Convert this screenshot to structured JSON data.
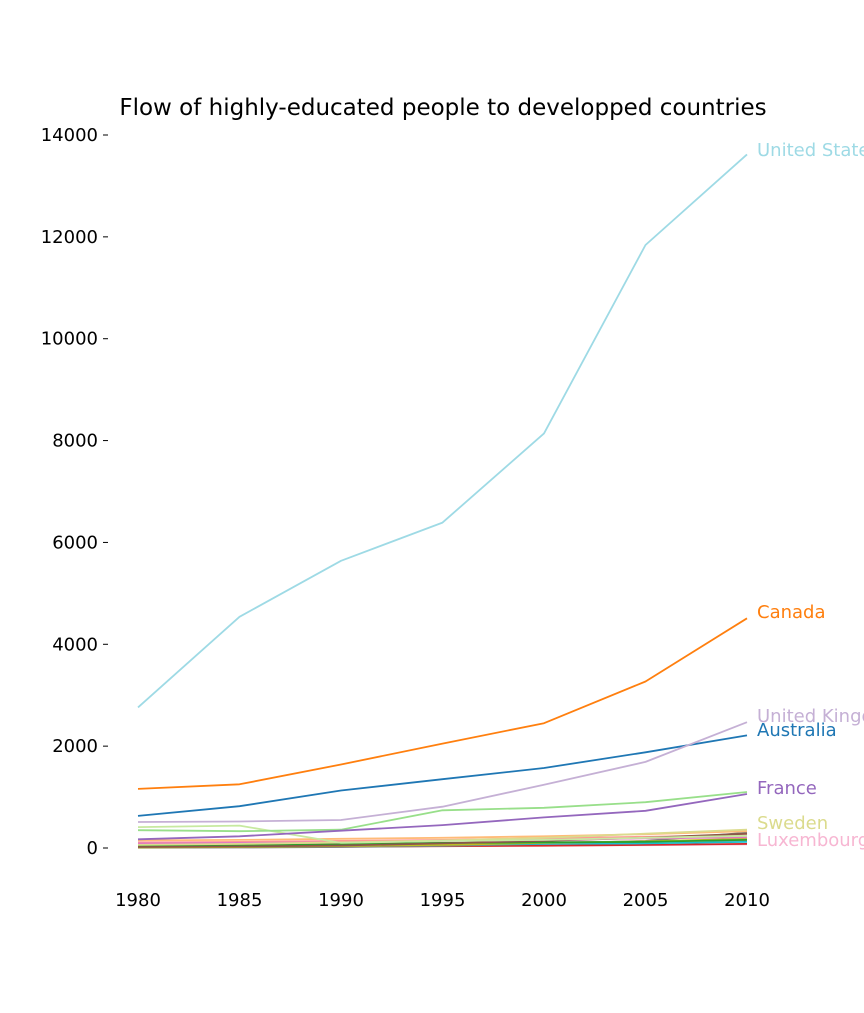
{
  "chart_data": {
    "type": "line",
    "title": "Flow of highly-educated people to developped countries",
    "xlabel": "",
    "ylabel": "",
    "x": [
      1980,
      1985,
      1990,
      1995,
      2000,
      2005,
      2010
    ],
    "xlim": [
      1980,
      2010
    ],
    "ylim": [
      -250,
      14100
    ],
    "xticks": [
      "1980",
      "1985",
      "1990",
      "1995",
      "2000",
      "2005",
      "2010"
    ],
    "yticks": [
      "0",
      "2000",
      "4000",
      "6000",
      "8000",
      "10000",
      "12000",
      "14000"
    ],
    "ytick_values": [
      0,
      2000,
      4000,
      6000,
      8000,
      10000,
      12000,
      14000
    ],
    "grid": false,
    "legend": "none",
    "series": [
      {
        "name": "United States",
        "label": "United States",
        "color": "#9edae5",
        "values": [
          2760,
          4540,
          5640,
          6390,
          8140,
          11840,
          13620
        ]
      },
      {
        "name": "Canada",
        "label": "Canada",
        "color": "#ff7f0e",
        "values": [
          1160,
          1250,
          1640,
          2050,
          2450,
          3270,
          4510
        ]
      },
      {
        "name": "United Kingdom",
        "label": "United Kingdom",
        "color": "#c5b0d5",
        "values": [
          510,
          520,
          550,
          810,
          1240,
          1690,
          2470
        ]
      },
      {
        "name": "Australia",
        "label": "Australia",
        "color": "#1f77b4",
        "values": [
          630,
          820,
          1130,
          1350,
          1570,
          1880,
          2210
        ]
      },
      {
        "name": "France",
        "label": "France",
        "color": "#9467bd",
        "values": [
          170,
          230,
          340,
          450,
          600,
          730,
          1060
        ]
      },
      {
        "color": "#98df8a",
        "values": [
          350,
          330,
          360,
          740,
          790,
          900,
          1100
        ]
      },
      {
        "color": "#c7e9a0",
        "values": [
          410,
          440,
          100,
          140,
          160,
          200,
          240
        ]
      },
      {
        "name": "Sweden",
        "label": "Sweden",
        "color": "#dbdb8d",
        "values": [
          60,
          80,
          110,
          150,
          200,
          280,
          360
        ]
      },
      {
        "color": "#ffbb78",
        "values": [
          150,
          160,
          180,
          200,
          230,
          270,
          330
        ]
      },
      {
        "color": "#e377c2",
        "values": [
          90,
          100,
          110,
          140,
          160,
          190,
          210
        ]
      },
      {
        "color": "#8c564b",
        "values": [
          20,
          30,
          50,
          90,
          140,
          200,
          280
        ]
      },
      {
        "color": "#2ca02c",
        "values": [
          40,
          50,
          70,
          100,
          110,
          120,
          160
        ]
      },
      {
        "color": "#bcbd22",
        "values": [
          10,
          20,
          40,
          60,
          100,
          130,
          180
        ]
      },
      {
        "color": "#ff9896",
        "values": [
          110,
          120,
          140,
          160,
          190,
          220,
          250
        ]
      },
      {
        "color": "#17becf",
        "values": [
          30,
          40,
          50,
          70,
          80,
          90,
          120
        ]
      },
      {
        "color": "#7f7f7f",
        "values": [
          5,
          10,
          20,
          40,
          80,
          140,
          300
        ]
      },
      {
        "color": "#c49c94",
        "values": [
          60,
          70,
          80,
          100,
          110,
          130,
          150
        ]
      },
      {
        "color": "#d62728",
        "values": [
          15,
          20,
          25,
          35,
          45,
          60,
          80
        ]
      },
      {
        "name": "Luxembourg",
        "label": "Luxembourg",
        "color": "#f7b6d2",
        "values": [
          25,
          30,
          35,
          40,
          50,
          55,
          70
        ]
      }
    ]
  }
}
